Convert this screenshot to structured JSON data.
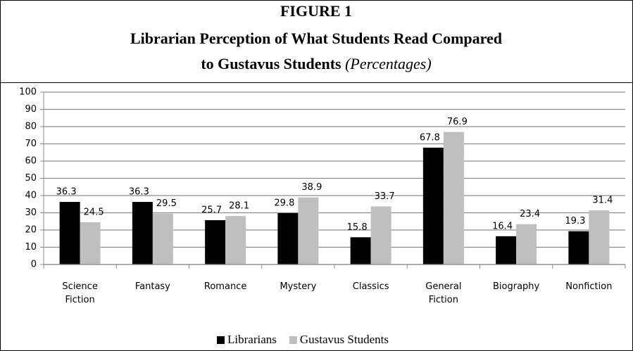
{
  "chart_data": {
    "type": "bar",
    "title": [
      "FIGURE 1",
      "Librarian Perception of What Students Read Compared",
      "to Gustavus Students"
    ],
    "title_note": "(Percentages)",
    "categories": [
      "Science Fiction",
      "Fantasy",
      "Romance",
      "Mystery",
      "Classics",
      "General Fiction",
      "Biography",
      "Nonfiction"
    ],
    "series": [
      {
        "name": "Librarians",
        "color": "#000000",
        "values": [
          36.3,
          36.3,
          25.7,
          29.8,
          15.8,
          67.8,
          16.4,
          19.3
        ]
      },
      {
        "name": "Gustavus Students",
        "color": "#bfbfbf",
        "values": [
          24.5,
          29.5,
          28.1,
          38.9,
          33.7,
          76.9,
          23.4,
          31.4
        ]
      }
    ],
    "ylim": [
      0,
      100
    ],
    "yticks": [
      0,
      10,
      20,
      30,
      40,
      50,
      60,
      70,
      80,
      90,
      100
    ],
    "grid": true,
    "legend": "bottom"
  }
}
